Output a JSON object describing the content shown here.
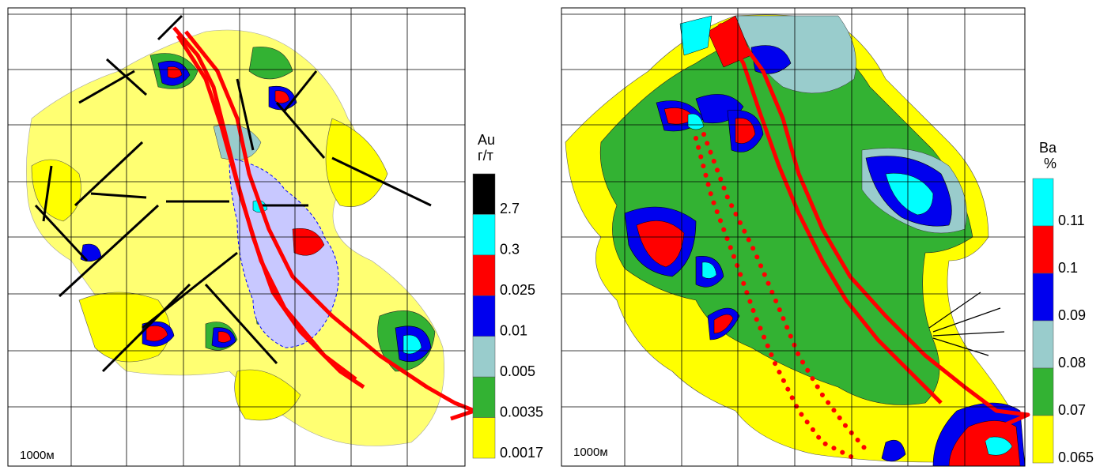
{
  "maps": [
    {
      "scale_label": "1000м",
      "legend": {
        "title": "Au",
        "unit": "г/т",
        "items": [
          {
            "label": "2.7",
            "color": "#000000"
          },
          {
            "label": "0.3",
            "color": "#00ffff"
          },
          {
            "label": "0.025",
            "color": "#ff0000"
          },
          {
            "label": "0.01",
            "color": "#0000ee"
          },
          {
            "label": "0.005",
            "color": "#99cccc"
          },
          {
            "label": "0.0035",
            "color": "#33b233"
          },
          {
            "label": "0.0017",
            "color": "#ffff00"
          }
        ]
      }
    },
    {
      "scale_label": "1000м",
      "legend": {
        "title": "Ba",
        "unit": "%",
        "items": [
          {
            "label": "0.11",
            "color": "#00ffff"
          },
          {
            "label": "0.1",
            "color": "#ff0000"
          },
          {
            "label": "0.09",
            "color": "#0000ee"
          },
          {
            "label": "0.08",
            "color": "#99cccc"
          },
          {
            "label": "0.07",
            "color": "#33b233"
          },
          {
            "label": "0.065",
            "color": "#ffff00"
          }
        ]
      }
    }
  ]
}
